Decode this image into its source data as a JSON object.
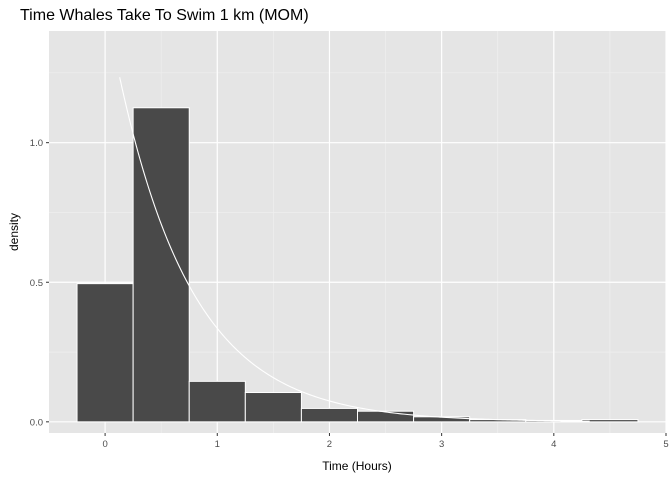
{
  "chart_data": {
    "type": "bar",
    "title": "Time Whales Take To Swim 1 km (MOM)",
    "xlabel": "Time (Hours)",
    "ylabel": "density",
    "xlim": [
      -0.5,
      5.0
    ],
    "ylim": [
      -0.04,
      1.4
    ],
    "x_ticks": [
      0,
      1,
      2,
      3,
      4,
      5
    ],
    "x_tick_labels": [
      "0",
      "1",
      "2",
      "3",
      "4",
      "5"
    ],
    "y_ticks": [
      0.0,
      0.5,
      1.0
    ],
    "y_tick_labels": [
      "0.0",
      "0.5",
      "1.0"
    ],
    "bin_width": 0.5,
    "bins": [
      {
        "start": -0.25,
        "end": 0.25,
        "density": 0.495
      },
      {
        "start": 0.25,
        "end": 0.75,
        "density": 1.125
      },
      {
        "start": 0.75,
        "end": 1.25,
        "density": 0.145
      },
      {
        "start": 1.25,
        "end": 1.75,
        "density": 0.105
      },
      {
        "start": 1.75,
        "end": 2.25,
        "density": 0.048
      },
      {
        "start": 2.25,
        "end": 2.75,
        "density": 0.038
      },
      {
        "start": 2.75,
        "end": 3.25,
        "density": 0.018
      },
      {
        "start": 3.25,
        "end": 3.75,
        "density": 0.008
      },
      {
        "start": 3.75,
        "end": 4.25,
        "density": 0.005
      },
      {
        "start": 4.25,
        "end": 4.75,
        "density": 0.008
      }
    ],
    "overlay_curve": {
      "type": "exponential-density",
      "rate": 1.5,
      "x_start": 0.13,
      "x_end": 4.32
    },
    "grid": true,
    "legend": "none",
    "colors": {
      "panel_background": "#e5e5e5",
      "grid_major": "#ffffff",
      "grid_minor": "#f0f0f0",
      "bar_fill": "#494949",
      "bar_outline": "#ffffff",
      "curve": "#ffffff",
      "tick_label": "#4d4d4d",
      "tick_mark": "#333333"
    }
  }
}
